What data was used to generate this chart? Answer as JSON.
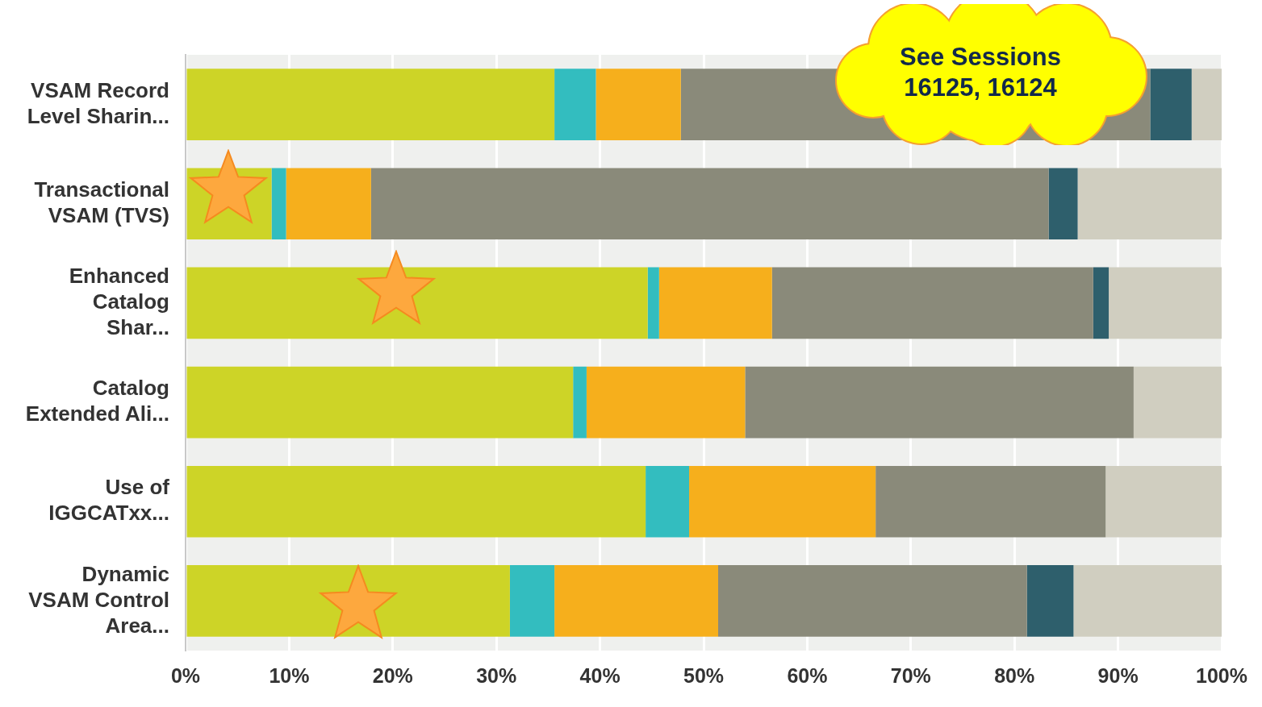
{
  "chart_data": {
    "type": "bar",
    "orientation": "horizontal",
    "stacked": true,
    "categories": [
      "VSAM Record Level Sharin...",
      "Transactional VSAM (TVS)",
      "Enhanced Catalog Shar...",
      "Catalog Extended Ali...",
      "Use of IGGCATxx...",
      "Dynamic VSAM Control Area..."
    ],
    "series": [
      {
        "color": "#cdd427",
        "values": [
          35.6,
          8.3,
          44.6,
          37.4,
          44.4,
          31.3
        ]
      },
      {
        "color": "#33bdbf",
        "values": [
          4.0,
          1.4,
          1.1,
          1.3,
          4.2,
          4.3
        ]
      },
      {
        "color": "#f6af1c",
        "values": [
          8.2,
          8.2,
          10.9,
          15.3,
          18.0,
          15.8
        ]
      },
      {
        "color": "#8a8a7a",
        "values": [
          45.3,
          65.4,
          31.0,
          37.5,
          22.2,
          29.8
        ]
      },
      {
        "color": "#2e5f6c",
        "values": [
          4.0,
          2.8,
          1.5,
          0,
          0,
          4.5
        ]
      },
      {
        "color": "#d0cec0",
        "values": [
          2.9,
          13.9,
          10.9,
          8.5,
          11.2,
          14.3
        ]
      }
    ],
    "xlim": [
      0,
      100
    ],
    "xticks": [
      {
        "value": 0,
        "label": "0%"
      },
      {
        "value": 10,
        "label": "10%"
      },
      {
        "value": 20,
        "label": "20%"
      },
      {
        "value": 30,
        "label": "30%"
      },
      {
        "value": 40,
        "label": "40%"
      },
      {
        "value": 50,
        "label": "50%"
      },
      {
        "value": 60,
        "label": "60%"
      },
      {
        "value": 70,
        "label": "70%"
      },
      {
        "value": 80,
        "label": "80%"
      },
      {
        "value": 90,
        "label": "90%"
      },
      {
        "value": 100,
        "label": "100%"
      }
    ],
    "grid": "x",
    "annotations": [
      "See Sessions 16125, 16124"
    ]
  }
}
